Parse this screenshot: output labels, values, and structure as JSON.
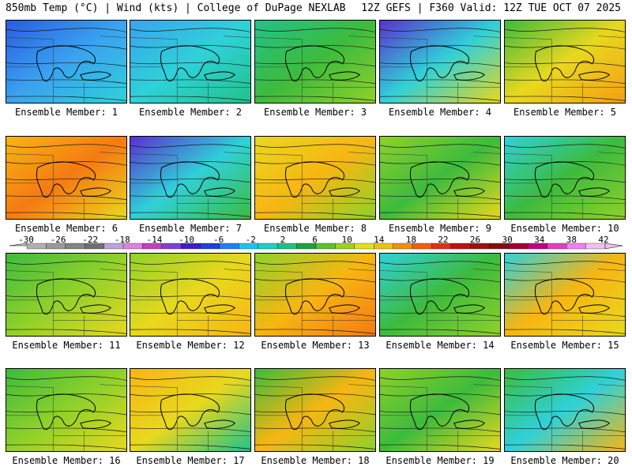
{
  "header": {
    "left": "850mb Temp (°C) | Wind (kts) | College of DuPage NEXLAB",
    "right": "12Z GEFS | F360 Valid: 12Z TUE OCT 07 2025"
  },
  "member_label_prefix": "Ensemble Member: ",
  "members": [
    {
      "id": "1",
      "gradient": [
        "#2a5be0",
        "#3aa3f0",
        "#2fd1d8"
      ]
    },
    {
      "id": "2",
      "gradient": [
        "#3aa3f0",
        "#2fd1d8",
        "#21c28a"
      ]
    },
    {
      "id": "3",
      "gradient": [
        "#21c28a",
        "#3dbb3d",
        "#8fd12a"
      ]
    },
    {
      "id": "4",
      "gradient": [
        "#5a2fd0",
        "#2fd1d8",
        "#e8d81e"
      ]
    },
    {
      "id": "5",
      "gradient": [
        "#3dbb3d",
        "#e8d81e",
        "#f59e12"
      ]
    },
    {
      "id": "6",
      "gradient": [
        "#f7b612",
        "#f57a12",
        "#e8d81e"
      ]
    },
    {
      "id": "7",
      "gradient": [
        "#5a2fd0",
        "#2fd1d8",
        "#3dbb3d"
      ]
    },
    {
      "id": "8",
      "gradient": [
        "#e8d81e",
        "#f7b612",
        "#8fd12a"
      ]
    },
    {
      "id": "9",
      "gradient": [
        "#8fd12a",
        "#3dbb3d",
        "#e8d81e"
      ]
    },
    {
      "id": "10",
      "gradient": [
        "#2fd1d8",
        "#3dbb3d",
        "#8fd12a"
      ]
    },
    {
      "id": "11",
      "gradient": [
        "#3dbb3d",
        "#8fd12a",
        "#e8d81e"
      ]
    },
    {
      "id": "12",
      "gradient": [
        "#8fd12a",
        "#e8d81e",
        "#f7b612"
      ]
    },
    {
      "id": "13",
      "gradient": [
        "#8fd12a",
        "#f7b612",
        "#f57a12"
      ]
    },
    {
      "id": "14",
      "gradient": [
        "#2fd1d8",
        "#3dbb3d",
        "#8fd12a"
      ]
    },
    {
      "id": "15",
      "gradient": [
        "#2fd1d8",
        "#f7b612",
        "#e8d81e"
      ]
    },
    {
      "id": "16",
      "gradient": [
        "#3dbb3d",
        "#8fd12a",
        "#e8d81e"
      ]
    },
    {
      "id": "17",
      "gradient": [
        "#f7b612",
        "#e8d81e",
        "#21c28a"
      ]
    },
    {
      "id": "18",
      "gradient": [
        "#3dbb3d",
        "#f7b612",
        "#8fd12a"
      ]
    },
    {
      "id": "19",
      "gradient": [
        "#8fd12a",
        "#3dbb3d",
        "#e8d81e"
      ]
    },
    {
      "id": "20",
      "gradient": [
        "#3dbb3d",
        "#2fd1d8",
        "#f7b612"
      ]
    }
  ],
  "colorbar": {
    "labels": [
      "-30",
      "-26",
      "-22",
      "-18",
      "-14",
      "-10",
      "-6",
      "-2",
      "2",
      "6",
      "10",
      "14",
      "18",
      "22",
      "26",
      "30",
      "34",
      "38",
      "42"
    ],
    "colors": [
      "#b0b0b0",
      "#9a9a9a",
      "#848484",
      "#707070",
      "#b8a6d8",
      "#e080e0",
      "#c040c0",
      "#8040d0",
      "#4020c0",
      "#2040e0",
      "#2080f0",
      "#20c0f0",
      "#20d0c0",
      "#20c080",
      "#20a040",
      "#60c030",
      "#a0d020",
      "#e0e020",
      "#f0c010",
      "#f09010",
      "#f06010",
      "#e03010",
      "#c01010",
      "#a01010",
      "#801010",
      "#a00030",
      "#c00080",
      "#e040c0",
      "#f080f0",
      "#f0c0f0"
    ]
  }
}
